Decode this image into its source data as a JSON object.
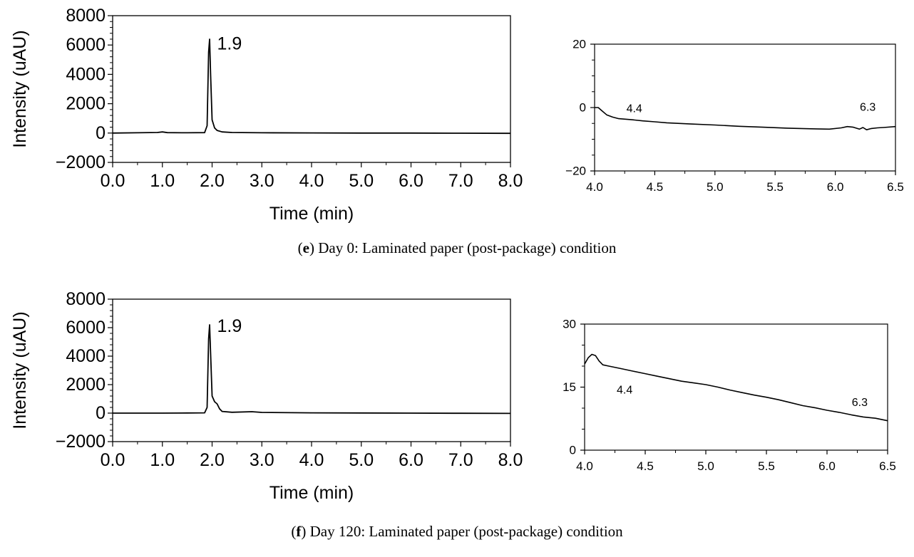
{
  "figure": {
    "captions": [
      {
        "label": "e",
        "text": "Day 0: Laminated paper (post-package) condition"
      },
      {
        "label": "f",
        "text": "Day 120: Laminated paper (post-package) condition"
      }
    ]
  },
  "chart_data": [
    {
      "type": "line",
      "panel": "e-main",
      "xlabel": "Time (min)",
      "ylabel": "Intensity (uAU)",
      "xlim": [
        0,
        8
      ],
      "ylim": [
        -2000,
        8000
      ],
      "xticks": [
        "0.0",
        "1.0",
        "2.0",
        "3.0",
        "4.0",
        "5.0",
        "6.0",
        "7.0",
        "8.0"
      ],
      "yticks": [
        "−2000",
        "0",
        "2000",
        "4000",
        "6000",
        "8000"
      ],
      "annotations": [
        {
          "text": "1.9",
          "x": 2.35,
          "y": 5700
        }
      ],
      "series": [
        {
          "x": [
            0,
            0.5,
            0.9,
            1.0,
            1.1,
            1.5,
            1.85,
            1.9,
            1.93,
            1.95,
            1.97,
            2.0,
            2.05,
            2.1,
            2.2,
            2.4,
            3.0,
            4.0,
            5.0,
            6.0,
            7.0,
            8.0
          ],
          "y": [
            0,
            20,
            40,
            80,
            30,
            20,
            30,
            500,
            5500,
            6400,
            4000,
            900,
            350,
            180,
            80,
            40,
            20,
            10,
            0,
            0,
            -10,
            -20
          ]
        }
      ]
    },
    {
      "type": "line",
      "panel": "e-inset",
      "xlim": [
        4.0,
        6.5
      ],
      "ylim": [
        -20,
        20
      ],
      "xticks": [
        "4.0",
        "4.5",
        "5.0",
        "5.5",
        "6.0",
        "6.5"
      ],
      "yticks": [
        "−20",
        "0",
        "20"
      ],
      "annotations": [
        {
          "text": "4.4",
          "x": 4.33,
          "y": -1.5
        },
        {
          "text": "6.3",
          "x": 6.27,
          "y": -1
        }
      ],
      "series": [
        {
          "x": [
            4.0,
            4.03,
            4.06,
            4.1,
            4.15,
            4.2,
            4.3,
            4.4,
            4.5,
            4.6,
            4.8,
            5.0,
            5.2,
            5.4,
            5.6,
            5.8,
            5.95,
            6.05,
            6.1,
            6.15,
            6.2,
            6.23,
            6.26,
            6.3,
            6.35,
            6.4,
            6.5
          ],
          "y": [
            0,
            0,
            -1,
            -2.3,
            -3,
            -3.5,
            -3.8,
            -4.2,
            -4.5,
            -4.8,
            -5.2,
            -5.5,
            -5.9,
            -6.2,
            -6.5,
            -6.7,
            -6.8,
            -6.4,
            -6.0,
            -6.2,
            -6.8,
            -6.3,
            -7.0,
            -6.6,
            -6.4,
            -6.3,
            -6.0
          ]
        }
      ]
    },
    {
      "type": "line",
      "panel": "f-main",
      "xlabel": "Time (min)",
      "ylabel": "Intensity (uAU)",
      "xlim": [
        0,
        8
      ],
      "ylim": [
        -2000,
        8000
      ],
      "xticks": [
        "0.0",
        "1.0",
        "2.0",
        "3.0",
        "4.0",
        "5.0",
        "6.0",
        "7.0",
        "8.0"
      ],
      "yticks": [
        "−2000",
        "0",
        "2000",
        "4000",
        "6000",
        "8000"
      ],
      "annotations": [
        {
          "text": "1.9",
          "x": 2.35,
          "y": 5700
        }
      ],
      "series": [
        {
          "x": [
            0,
            0.5,
            1.0,
            1.5,
            1.85,
            1.9,
            1.93,
            1.95,
            1.97,
            2.0,
            2.05,
            2.1,
            2.15,
            2.2,
            2.4,
            2.8,
            3.0,
            4.0,
            5.0,
            6.0,
            7.0,
            8.0
          ],
          "y": [
            0,
            0,
            0,
            10,
            20,
            400,
            5200,
            6200,
            4200,
            1200,
            800,
            650,
            300,
            120,
            60,
            100,
            50,
            20,
            10,
            0,
            -10,
            -20
          ]
        }
      ]
    },
    {
      "type": "line",
      "panel": "f-inset",
      "xlim": [
        4.0,
        6.5
      ],
      "ylim": [
        0,
        30
      ],
      "xticks": [
        "4.0",
        "4.5",
        "5.0",
        "5.5",
        "6.0",
        "6.5"
      ],
      "yticks": [
        "0",
        "15",
        "30"
      ],
      "annotations": [
        {
          "text": "4.4",
          "x": 4.33,
          "y": 13.5
        },
        {
          "text": "6.3",
          "x": 6.27,
          "y": 10.5
        }
      ],
      "series": [
        {
          "x": [
            4.0,
            4.03,
            4.06,
            4.09,
            4.12,
            4.15,
            4.2,
            4.3,
            4.4,
            4.5,
            4.6,
            4.7,
            4.8,
            4.9,
            5.0,
            5.1,
            5.2,
            5.3,
            5.4,
            5.5,
            5.6,
            5.7,
            5.8,
            5.9,
            6.0,
            6.1,
            6.2,
            6.3,
            6.4,
            6.5
          ],
          "y": [
            20.5,
            22,
            22.8,
            22.5,
            21.2,
            20.3,
            20,
            19.4,
            18.8,
            18.2,
            17.6,
            17,
            16.4,
            16,
            15.6,
            15,
            14.3,
            13.7,
            13.1,
            12.6,
            12,
            11.3,
            10.6,
            10.1,
            9.5,
            9.0,
            8.4,
            7.9,
            7.6,
            7.0
          ]
        }
      ]
    }
  ]
}
